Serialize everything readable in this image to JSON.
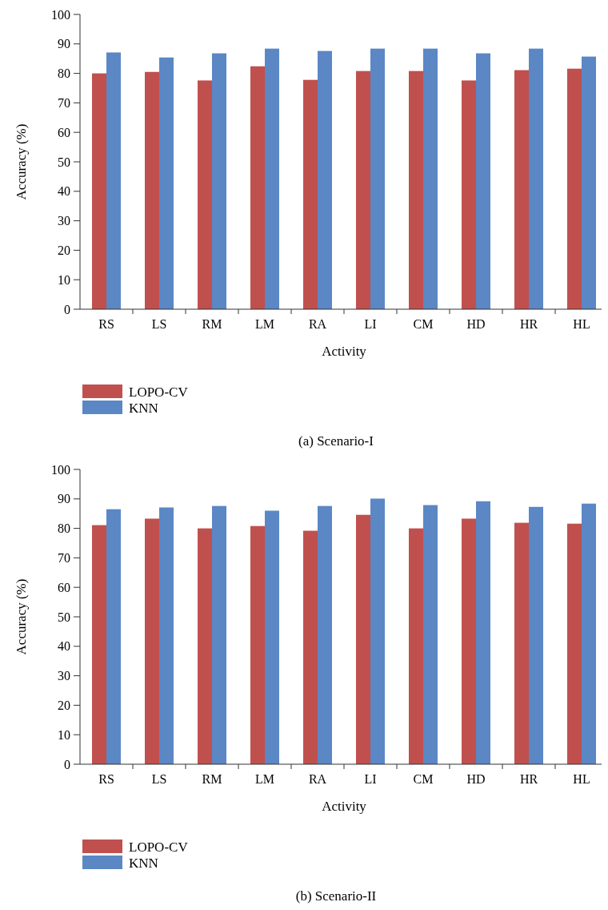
{
  "chart_data": [
    {
      "type": "bar",
      "title": "(a) Scenario-I",
      "xlabel": "Activity",
      "ylabel": "Accuracy (%)",
      "categories": [
        "RS",
        "LS",
        "RM",
        "LM",
        "RA",
        "LI",
        "CM",
        "HD",
        "HR",
        "HL"
      ],
      "series": [
        {
          "name": "LOPO-CV",
          "color": "#c0504d",
          "values": [
            80.0,
            80.5,
            77.6,
            82.4,
            77.8,
            80.8,
            80.8,
            77.6,
            81.1,
            81.6
          ]
        },
        {
          "name": "KNN",
          "color": "#5b87c5",
          "values": [
            87.1,
            85.4,
            86.8,
            88.4,
            87.6,
            88.4,
            88.4,
            86.8,
            88.4,
            85.7
          ]
        }
      ],
      "ylim": [
        0,
        100
      ],
      "yticks": [
        0,
        10,
        20,
        30,
        40,
        50,
        60,
        70,
        80,
        90,
        100
      ],
      "legend": "bottom left",
      "grid": false
    },
    {
      "type": "bar",
      "title": "(b) Scenario-II",
      "xlabel": "Activity",
      "ylabel": "Accuracy (%)",
      "categories": [
        "RS",
        "LS",
        "RM",
        "LM",
        "RA",
        "LI",
        "CM",
        "HD",
        "HR",
        "HL"
      ],
      "series": [
        {
          "name": "LOPO-CV",
          "color": "#c0504d",
          "values": [
            81.1,
            83.3,
            80.0,
            80.8,
            79.2,
            84.6,
            80.0,
            83.3,
            81.9,
            81.6
          ]
        },
        {
          "name": "KNN",
          "color": "#5b87c5",
          "values": [
            86.5,
            87.1,
            87.6,
            86.0,
            87.6,
            90.1,
            87.9,
            89.2,
            87.3,
            88.4
          ]
        }
      ],
      "ylim": [
        0,
        100
      ],
      "yticks": [
        0,
        10,
        20,
        30,
        40,
        50,
        60,
        70,
        80,
        90,
        100
      ],
      "legend": "bottom left",
      "grid": false
    }
  ]
}
